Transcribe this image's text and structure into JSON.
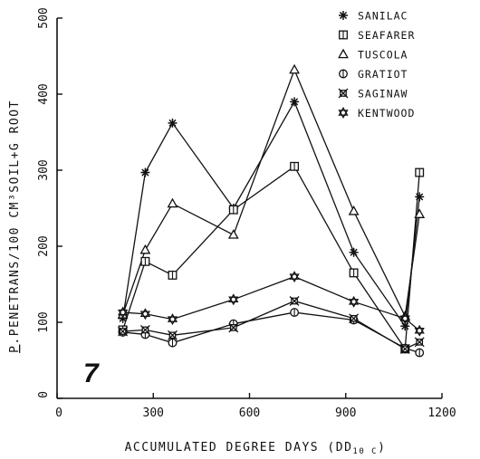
{
  "chart_data": {
    "type": "line",
    "title": "",
    "panel_label": "7",
    "xlabel": "ACCUMULATED DEGREE DAYS (DD",
    "xlabel_sub": "10 C",
    "xlabel_close": ")",
    "ylabel_prefix": "P",
    "ylabel_rest": ".PENETRANS/100 CM³SOIL+G ROOT",
    "xlim": [
      0,
      1200
    ],
    "ylim": [
      0,
      500
    ],
    "xticks": [
      0,
      300,
      600,
      900,
      1200
    ],
    "yticks": [
      0,
      100,
      200,
      300,
      400,
      500
    ],
    "x_tick_labels": [
      "0",
      "300",
      "600",
      "900",
      "1200"
    ],
    "y_tick_labels": [
      "0",
      "100",
      "200",
      "300",
      "400",
      "500"
    ],
    "grid": false,
    "legend_position": "top-right",
    "series": [
      {
        "name": "SANILAC",
        "marker": "asterisk",
        "x": [
          205,
          275,
          360,
          550,
          740,
          925,
          1085,
          1130
        ],
        "y": [
          105,
          297,
          362,
          250,
          390,
          192,
          95,
          265
        ]
      },
      {
        "name": "SEAFARER",
        "marker": "square",
        "x": [
          205,
          275,
          360,
          550,
          740,
          925,
          1085,
          1130
        ],
        "y": [
          90,
          180,
          162,
          248,
          305,
          165,
          65,
          297
        ]
      },
      {
        "name": "TUSCOLA",
        "marker": "triangle",
        "x": [
          205,
          275,
          360,
          550,
          740,
          925,
          1085,
          1130
        ],
        "y": [
          110,
          195,
          256,
          215,
          432,
          246,
          108,
          242
        ]
      },
      {
        "name": "GRATIOT",
        "marker": "circle",
        "x": [
          205,
          275,
          360,
          550,
          740,
          925,
          1085,
          1130
        ],
        "y": [
          87,
          84,
          73,
          98,
          113,
          103,
          66,
          60
        ]
      },
      {
        "name": "SAGINAW",
        "marker": "crossbox",
        "x": [
          205,
          275,
          360,
          550,
          740,
          925,
          1085,
          1130
        ],
        "y": [
          88,
          90,
          83,
          93,
          128,
          105,
          65,
          74
        ]
      },
      {
        "name": "KENTWOOD",
        "marker": "star",
        "x": [
          205,
          275,
          360,
          550,
          740,
          925,
          1085,
          1130
        ],
        "y": [
          113,
          111,
          104,
          130,
          160,
          127,
          105,
          89
        ]
      }
    ]
  }
}
